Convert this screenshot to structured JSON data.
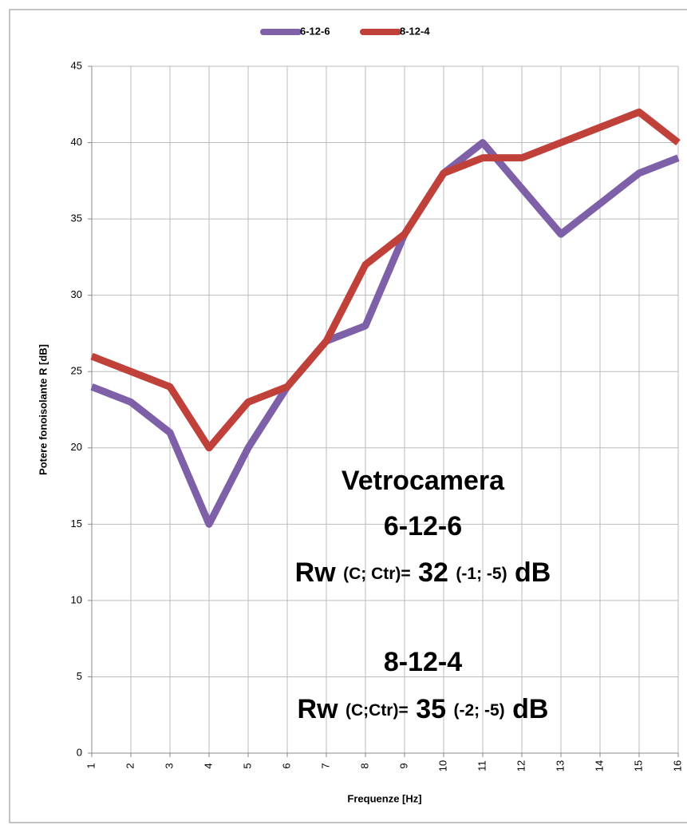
{
  "chart_data": {
    "type": "line",
    "x_label": "Frequenze [Hz]",
    "y_label": "Potere fonoisolante R [dB]",
    "x": [
      1,
      2,
      3,
      4,
      5,
      6,
      7,
      8,
      9,
      10,
      11,
      12,
      13,
      14,
      15,
      16
    ],
    "xlim": [
      1,
      16
    ],
    "xticks": [
      1,
      2,
      3,
      4,
      5,
      6,
      7,
      8,
      9,
      10,
      11,
      12,
      13,
      14,
      15,
      16
    ],
    "ylim": [
      0,
      45
    ],
    "yticks": [
      0,
      5,
      10,
      15,
      20,
      25,
      30,
      35,
      40,
      45
    ],
    "grid": true,
    "legend": "top",
    "series": [
      {
        "name": "6-12-6",
        "color": "#7d60a8",
        "values": [
          24,
          23,
          21,
          15,
          20,
          24,
          27,
          28,
          34,
          38,
          40,
          37,
          34,
          36,
          38,
          39
        ]
      },
      {
        "name": "8-12-4",
        "color": "#c0403a",
        "values": [
          26,
          25,
          24,
          20,
          23,
          24,
          27,
          32,
          34,
          38,
          39,
          39,
          40,
          41,
          42,
          40
        ]
      }
    ],
    "annotation": {
      "title": "Vetrocamera",
      "blocks": [
        {
          "name": "6-12-6",
          "rw_label": "Rw",
          "params": "(C; Ctr)=",
          "value": 32,
          "corrections": "(-1; -5)",
          "unit": "dB"
        },
        {
          "name": "8-12-4",
          "rw_label": "Rw",
          "params": "(C;Ctr)=",
          "value": 35,
          "corrections": "(-2; -5)",
          "unit": "dB"
        }
      ]
    }
  }
}
